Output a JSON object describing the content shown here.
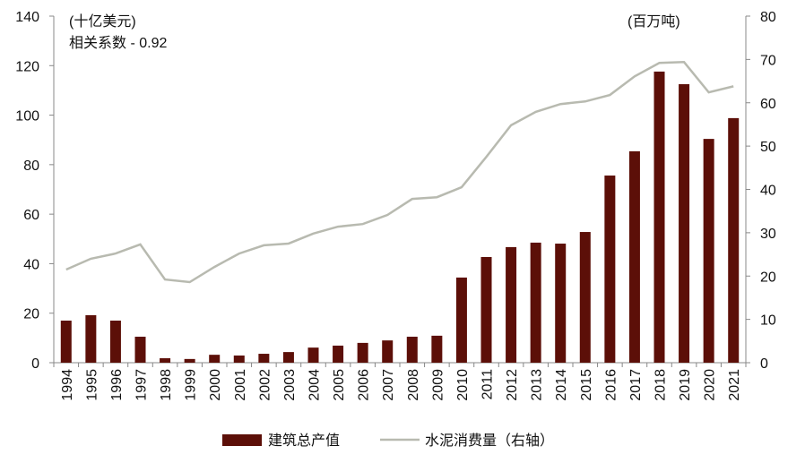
{
  "chart_data": {
    "type": "bar+line",
    "left_unit_label": "(十亿美元)",
    "right_unit_label": "(百万吨)",
    "annotation": "相关系数 - 0.92",
    "categories": [
      "1994",
      "1995",
      "1996",
      "1997",
      "1998",
      "1999",
      "2000",
      "2001",
      "2002",
      "2003",
      "2004",
      "2005",
      "2006",
      "2007",
      "2008",
      "2009",
      "2010",
      "2011",
      "2012",
      "2013",
      "2014",
      "2015",
      "2016",
      "2017",
      "2018",
      "2019",
      "2020",
      "2021"
    ],
    "series": [
      {
        "name": "建筑总产值",
        "type": "bar",
        "axis": "left",
        "color": "#5c0f08",
        "values": [
          17,
          19.2,
          17,
          10.5,
          1.8,
          1.5,
          3.2,
          2.9,
          3.6,
          4.3,
          6.1,
          6.9,
          8,
          9,
          10.5,
          10.9,
          34.4,
          42.7,
          46.7,
          48.5,
          48.1,
          52.8,
          75.6,
          85.4,
          117.6,
          112.5,
          90.4,
          98.8
        ]
      },
      {
        "name": "水泥消费量（右轴）",
        "type": "line",
        "axis": "right",
        "color": "#b8bab0",
        "values": [
          21.5,
          24,
          25.2,
          27.3,
          19.2,
          18.6,
          22.1,
          25.2,
          27.1,
          27.5,
          29.8,
          31.4,
          32,
          34.1,
          37.8,
          38.2,
          40.5,
          47.5,
          54.8,
          57.9,
          59.7,
          60.3,
          61.8,
          66.1,
          69.2,
          69.4,
          62.4,
          63.8
        ]
      }
    ],
    "left_axis": {
      "ylim": [
        0,
        140
      ],
      "ticks": [
        "0",
        "20",
        "40",
        "60",
        "80",
        "100",
        "120",
        "140"
      ]
    },
    "right_axis": {
      "ylim": [
        0,
        80
      ],
      "ticks": [
        "0",
        "10",
        "20",
        "30",
        "40",
        "50",
        "60",
        "70",
        "80"
      ]
    },
    "legend": {
      "placement": "bottom",
      "items": [
        "建筑总产值",
        "水泥消费量（右轴）"
      ]
    }
  }
}
